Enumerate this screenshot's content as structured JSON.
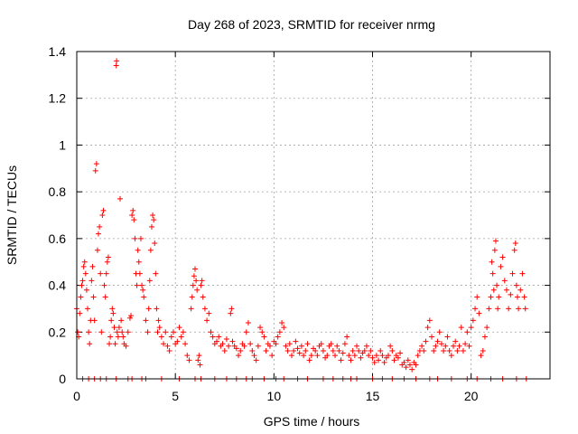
{
  "chart_data": {
    "type": "scatter",
    "title": "Day 268 of 2023, SRMTID for receiver nrmg",
    "xlabel": "GPS time / hours",
    "ylabel": "SRMTID / TECUs",
    "xlim": [
      0,
      24
    ],
    "ylim": [
      0,
      1.4
    ],
    "x_ticks": [
      0,
      5,
      10,
      15,
      20
    ],
    "x_tick_labels": [
      "0",
      "5",
      "10",
      "15",
      "20"
    ],
    "y_ticks": [
      0,
      0.2,
      0.4,
      0.6,
      0.8,
      1.0,
      1.2,
      1.4
    ],
    "y_tick_labels": [
      "0",
      "0.2",
      "0.4",
      "0.6",
      "0.8",
      "1",
      "1.2",
      "1.4"
    ],
    "grid": true,
    "marker": "+",
    "series": [
      {
        "name": "nrmg",
        "color": "#ff0000",
        "points": [
          [
            0.0,
            0.3
          ],
          [
            0.05,
            0.2
          ],
          [
            0.1,
            0.18
          ],
          [
            0.15,
            0.28
          ],
          [
            0.2,
            0.35
          ],
          [
            0.25,
            0.4
          ],
          [
            0.3,
            0.42
          ],
          [
            0.35,
            0.48
          ],
          [
            0.4,
            0.5
          ],
          [
            0.45,
            0.45
          ],
          [
            0.5,
            0.38
          ],
          [
            0.55,
            0.3
          ],
          [
            0.6,
            0.2
          ],
          [
            0.65,
            0.15
          ],
          [
            0.7,
            0.25
          ],
          [
            0.75,
            0.42
          ],
          [
            0.8,
            0.48
          ],
          [
            0.85,
            0.35
          ],
          [
            0.9,
            0.25
          ],
          [
            0.95,
            0.89
          ],
          [
            1.0,
            0.92
          ],
          [
            1.05,
            0.55
          ],
          [
            1.1,
            0.62
          ],
          [
            1.15,
            0.65
          ],
          [
            1.2,
            0.45
          ],
          [
            1.25,
            0.2
          ],
          [
            1.3,
            0.7
          ],
          [
            1.35,
            0.72
          ],
          [
            1.4,
            0.4
          ],
          [
            1.45,
            0.35
          ],
          [
            1.5,
            0.45
          ],
          [
            1.55,
            0.5
          ],
          [
            1.6,
            0.52
          ],
          [
            1.65,
            0.15
          ],
          [
            1.7,
            0.18
          ],
          [
            1.75,
            0.25
          ],
          [
            1.8,
            0.3
          ],
          [
            1.85,
            0.28
          ],
          [
            1.9,
            0.22
          ],
          [
            1.95,
            0.15
          ],
          [
            2.0,
            1.34
          ],
          [
            2.02,
            1.36
          ],
          [
            2.05,
            0.2
          ],
          [
            2.1,
            0.18
          ],
          [
            2.15,
            0.22
          ],
          [
            2.2,
            0.77
          ],
          [
            2.25,
            0.25
          ],
          [
            2.3,
            0.2
          ],
          [
            2.35,
            0.18
          ],
          [
            2.4,
            0.15
          ],
          [
            2.5,
            0.14
          ],
          [
            2.6,
            0.2
          ],
          [
            2.7,
            0.26
          ],
          [
            2.75,
            0.27
          ],
          [
            2.8,
            0.7
          ],
          [
            2.85,
            0.72
          ],
          [
            2.9,
            0.68
          ],
          [
            2.95,
            0.6
          ],
          [
            3.0,
            0.45
          ],
          [
            3.05,
            0.4
          ],
          [
            3.1,
            0.55
          ],
          [
            3.15,
            0.5
          ],
          [
            3.2,
            0.45
          ],
          [
            3.25,
            0.6
          ],
          [
            3.3,
            0.4
          ],
          [
            3.35,
            0.38
          ],
          [
            3.4,
            0.35
          ],
          [
            3.5,
            0.25
          ],
          [
            3.6,
            0.2
          ],
          [
            3.65,
            0.3
          ],
          [
            3.7,
            0.42
          ],
          [
            3.75,
            0.55
          ],
          [
            3.8,
            0.65
          ],
          [
            3.85,
            0.7
          ],
          [
            3.9,
            0.68
          ],
          [
            3.95,
            0.58
          ],
          [
            4.0,
            0.45
          ],
          [
            4.05,
            0.3
          ],
          [
            4.1,
            0.2
          ],
          [
            4.15,
            0.25
          ],
          [
            4.2,
            0.22
          ],
          [
            4.3,
            0.18
          ],
          [
            4.4,
            0.15
          ],
          [
            4.5,
            0.2
          ],
          [
            4.6,
            0.14
          ],
          [
            4.7,
            0.12
          ],
          [
            4.8,
            0.18
          ],
          [
            4.9,
            0.2
          ],
          [
            5.0,
            0.15
          ],
          [
            5.1,
            0.16
          ],
          [
            5.2,
            0.22
          ],
          [
            5.3,
            0.18
          ],
          [
            5.4,
            0.2
          ],
          [
            5.5,
            0.15
          ],
          [
            5.6,
            0.1
          ],
          [
            5.7,
            0.08
          ],
          [
            5.8,
            0.3
          ],
          [
            5.85,
            0.35
          ],
          [
            5.9,
            0.4
          ],
          [
            5.95,
            0.44
          ],
          [
            6.0,
            0.47
          ],
          [
            6.05,
            0.42
          ],
          [
            6.1,
            0.38
          ],
          [
            6.15,
            0.08
          ],
          [
            6.2,
            0.1
          ],
          [
            6.25,
            0.06
          ],
          [
            6.3,
            0.4
          ],
          [
            6.35,
            0.42
          ],
          [
            6.4,
            0.35
          ],
          [
            6.5,
            0.3
          ],
          [
            6.6,
            0.25
          ],
          [
            6.7,
            0.28
          ],
          [
            6.8,
            0.2
          ],
          [
            6.9,
            0.18
          ],
          [
            7.0,
            0.15
          ],
          [
            7.1,
            0.16
          ],
          [
            7.2,
            0.18
          ],
          [
            7.3,
            0.14
          ],
          [
            7.4,
            0.15
          ],
          [
            7.5,
            0.12
          ],
          [
            7.6,
            0.17
          ],
          [
            7.7,
            0.14
          ],
          [
            7.8,
            0.28
          ],
          [
            7.85,
            0.3
          ],
          [
            7.9,
            0.16
          ],
          [
            8.0,
            0.14
          ],
          [
            8.1,
            0.13
          ],
          [
            8.2,
            0.1
          ],
          [
            8.3,
            0.12
          ],
          [
            8.4,
            0.15
          ],
          [
            8.5,
            0.14
          ],
          [
            8.6,
            0.2
          ],
          [
            8.7,
            0.24
          ],
          [
            8.8,
            0.15
          ],
          [
            8.9,
            0.12
          ],
          [
            9.0,
            0.1
          ],
          [
            9.1,
            0.08
          ],
          [
            9.2,
            0.14
          ],
          [
            9.3,
            0.22
          ],
          [
            9.4,
            0.2
          ],
          [
            9.5,
            0.18
          ],
          [
            9.6,
            0.12
          ],
          [
            9.7,
            0.15
          ],
          [
            9.8,
            0.14
          ],
          [
            9.9,
            0.1
          ],
          [
            10.0,
            0.16
          ],
          [
            10.1,
            0.15
          ],
          [
            10.2,
            0.18
          ],
          [
            10.3,
            0.2
          ],
          [
            10.4,
            0.24
          ],
          [
            10.5,
            0.22
          ],
          [
            10.6,
            0.14
          ],
          [
            10.7,
            0.12
          ],
          [
            10.8,
            0.15
          ],
          [
            10.9,
            0.1
          ],
          [
            11.0,
            0.12
          ],
          [
            11.1,
            0.16
          ],
          [
            11.2,
            0.13
          ],
          [
            11.3,
            0.11
          ],
          [
            11.4,
            0.14
          ],
          [
            11.5,
            0.1
          ],
          [
            11.6,
            0.12
          ],
          [
            11.7,
            0.15
          ],
          [
            11.8,
            0.08
          ],
          [
            11.9,
            0.1
          ],
          [
            12.0,
            0.13
          ],
          [
            12.1,
            0.12
          ],
          [
            12.2,
            0.1
          ],
          [
            12.3,
            0.14
          ],
          [
            12.4,
            0.15
          ],
          [
            12.5,
            0.12
          ],
          [
            12.6,
            0.09
          ],
          [
            12.7,
            0.1
          ],
          [
            12.8,
            0.14
          ],
          [
            12.9,
            0.15
          ],
          [
            13.0,
            0.12
          ],
          [
            13.1,
            0.1
          ],
          [
            13.2,
            0.14
          ],
          [
            13.3,
            0.12
          ],
          [
            13.4,
            0.08
          ],
          [
            13.5,
            0.11
          ],
          [
            13.6,
            0.15
          ],
          [
            13.7,
            0.18
          ],
          [
            13.8,
            0.1
          ],
          [
            13.9,
            0.08
          ],
          [
            14.0,
            0.12
          ],
          [
            14.1,
            0.1
          ],
          [
            14.2,
            0.14
          ],
          [
            14.3,
            0.12
          ],
          [
            14.4,
            0.09
          ],
          [
            14.5,
            0.11
          ],
          [
            14.6,
            0.12
          ],
          [
            14.7,
            0.14
          ],
          [
            14.8,
            0.1
          ],
          [
            14.9,
            0.12
          ],
          [
            15.0,
            0.09
          ],
          [
            15.1,
            0.07
          ],
          [
            15.2,
            0.1
          ],
          [
            15.3,
            0.08
          ],
          [
            15.4,
            0.12
          ],
          [
            15.5,
            0.1
          ],
          [
            15.6,
            0.07
          ],
          [
            15.7,
            0.09
          ],
          [
            15.8,
            0.1
          ],
          [
            15.9,
            0.14
          ],
          [
            16.0,
            0.12
          ],
          [
            16.1,
            0.08
          ],
          [
            16.2,
            0.1
          ],
          [
            16.3,
            0.09
          ],
          [
            16.4,
            0.11
          ],
          [
            16.5,
            0.06
          ],
          [
            16.6,
            0.07
          ],
          [
            16.7,
            0.05
          ],
          [
            16.8,
            0.08
          ],
          [
            16.9,
            0.06
          ],
          [
            17.0,
            0.04
          ],
          [
            17.1,
            0.07
          ],
          [
            17.2,
            0.06
          ],
          [
            17.3,
            0.1
          ],
          [
            17.4,
            0.12
          ],
          [
            17.5,
            0.14
          ],
          [
            17.6,
            0.12
          ],
          [
            17.7,
            0.16
          ],
          [
            17.8,
            0.22
          ],
          [
            17.9,
            0.25
          ],
          [
            18.0,
            0.18
          ],
          [
            18.1,
            0.12
          ],
          [
            18.2,
            0.14
          ],
          [
            18.3,
            0.16
          ],
          [
            18.4,
            0.2
          ],
          [
            18.5,
            0.15
          ],
          [
            18.6,
            0.12
          ],
          [
            18.7,
            0.14
          ],
          [
            18.8,
            0.18
          ],
          [
            18.9,
            0.12
          ],
          [
            19.0,
            0.1
          ],
          [
            19.1,
            0.14
          ],
          [
            19.2,
            0.16
          ],
          [
            19.3,
            0.12
          ],
          [
            19.4,
            0.14
          ],
          [
            19.5,
            0.22
          ],
          [
            19.6,
            0.12
          ],
          [
            19.7,
            0.15
          ],
          [
            19.8,
            0.2
          ],
          [
            19.9,
            0.14
          ],
          [
            20.0,
            0.22
          ],
          [
            20.1,
            0.25
          ],
          [
            20.2,
            0.3
          ],
          [
            20.3,
            0.35
          ],
          [
            20.4,
            0.28
          ],
          [
            20.5,
            0.1
          ],
          [
            20.6,
            0.12
          ],
          [
            20.7,
            0.18
          ],
          [
            20.8,
            0.22
          ],
          [
            20.9,
            0.3
          ],
          [
            21.0,
            0.35
          ],
          [
            21.05,
            0.5
          ],
          [
            21.1,
            0.45
          ],
          [
            21.15,
            0.38
          ],
          [
            21.2,
            0.55
          ],
          [
            21.25,
            0.59
          ],
          [
            21.3,
            0.4
          ],
          [
            21.35,
            0.3
          ],
          [
            21.4,
            0.35
          ],
          [
            21.5,
            0.48
          ],
          [
            21.6,
            0.52
          ],
          [
            21.7,
            0.42
          ],
          [
            21.8,
            0.38
          ],
          [
            21.9,
            0.3
          ],
          [
            22.0,
            0.36
          ],
          [
            22.1,
            0.45
          ],
          [
            22.2,
            0.55
          ],
          [
            22.25,
            0.58
          ],
          [
            22.3,
            0.4
          ],
          [
            22.35,
            0.35
          ],
          [
            22.4,
            0.3
          ],
          [
            22.5,
            0.38
          ],
          [
            22.6,
            0.45
          ],
          [
            22.7,
            0.35
          ],
          [
            22.75,
            0.3
          ],
          [
            0.3,
            0.0
          ],
          [
            0.6,
            0.0
          ],
          [
            0.9,
            0.0
          ],
          [
            1.2,
            0.0
          ],
          [
            1.5,
            0.0
          ],
          [
            2.0,
            0.0
          ],
          [
            2.6,
            0.0
          ],
          [
            2.8,
            0.0
          ],
          [
            3.3,
            0.0
          ],
          [
            3.5,
            0.0
          ],
          [
            4.3,
            0.0
          ],
          [
            5.2,
            0.0
          ],
          [
            6.0,
            0.0
          ],
          [
            6.3,
            0.0
          ],
          [
            7.0,
            0.0
          ],
          [
            7.6,
            0.0
          ],
          [
            8.1,
            0.0
          ],
          [
            8.6,
            0.0
          ],
          [
            8.9,
            0.0
          ],
          [
            9.5,
            0.0
          ],
          [
            10.1,
            0.0
          ],
          [
            10.5,
            0.0
          ],
          [
            11.2,
            0.0
          ],
          [
            11.7,
            0.0
          ],
          [
            12.5,
            0.0
          ],
          [
            13.0,
            0.0
          ],
          [
            13.5,
            0.0
          ],
          [
            13.9,
            0.0
          ],
          [
            14.2,
            0.0
          ],
          [
            15.0,
            0.0
          ],
          [
            15.5,
            0.0
          ],
          [
            16.0,
            0.0
          ],
          [
            16.6,
            0.0
          ],
          [
            17.2,
            0.0
          ],
          [
            17.9,
            0.0
          ],
          [
            18.3,
            0.0
          ],
          [
            19.0,
            0.0
          ],
          [
            19.8,
            0.0
          ],
          [
            20.3,
            0.0
          ],
          [
            21.0,
            0.0
          ],
          [
            21.6,
            0.0
          ],
          [
            22.3,
            0.0
          ],
          [
            22.8,
            0.0
          ]
        ]
      }
    ]
  }
}
